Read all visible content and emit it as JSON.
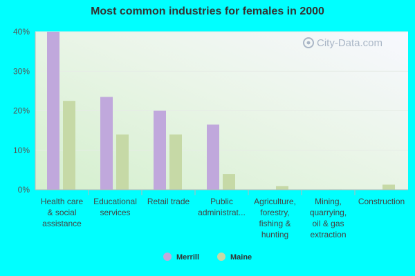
{
  "chart_data": {
    "type": "bar",
    "title": "Most common industries for females in 2000",
    "xlabel": "",
    "ylabel": "",
    "ylim": [
      0,
      40
    ],
    "yticks": [
      0,
      10,
      20,
      30,
      40
    ],
    "ytick_labels": [
      "0%",
      "10%",
      "20%",
      "30%",
      "40%"
    ],
    "grid": true,
    "legend_position": "bottom-center",
    "categories": [
      [
        "Health care",
        "& social",
        "assistance"
      ],
      [
        "Educational",
        "services"
      ],
      [
        "Retail trade"
      ],
      [
        "Public",
        "administrat..."
      ],
      [
        "Agriculture,",
        "forestry,",
        "fishing &",
        "hunting"
      ],
      [
        "Mining,",
        "quarrying,",
        "oil & gas",
        "extraction"
      ],
      [
        "Construction"
      ]
    ],
    "series": [
      {
        "name": "Merrill",
        "color": "#c0a8dc",
        "values": [
          40.0,
          23.5,
          20.0,
          16.5,
          0,
          0,
          0
        ]
      },
      {
        "name": "Maine",
        "color": "#c6d9a6",
        "values": [
          22.5,
          14.0,
          14.0,
          4.0,
          0.9,
          0.1,
          1.3
        ]
      }
    ]
  },
  "watermark": "City-Data.com"
}
